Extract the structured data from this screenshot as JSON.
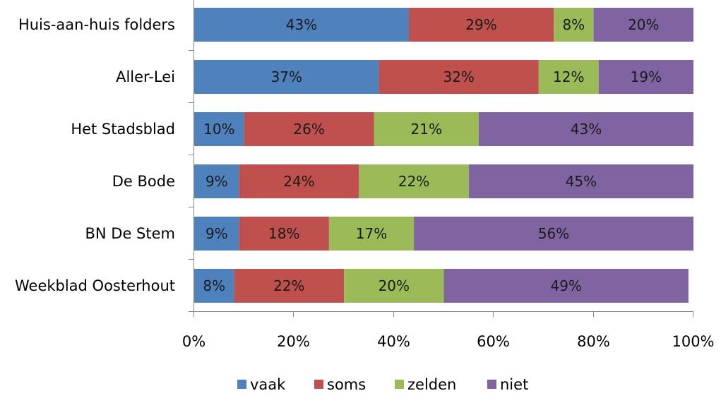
{
  "chart_data": {
    "type": "bar",
    "orientation": "horizontal",
    "stacked": "percent",
    "categories": [
      "Huis-aan-huis folders",
      "Aller-Lei",
      "Het Stadsblad",
      "De Bode",
      "BN De Stem",
      "Weekblad Oosterhout"
    ],
    "series": [
      {
        "name": "vaak",
        "color": "#4f81bd",
        "values": [
          43,
          37,
          10,
          9,
          9,
          8
        ],
        "labels": [
          "43%",
          "37%",
          "10%",
          "9%",
          "9%",
          "8%"
        ]
      },
      {
        "name": "soms",
        "color": "#c0504d",
        "values": [
          29,
          32,
          26,
          24,
          18,
          22
        ],
        "labels": [
          "29%",
          "32%",
          "26%",
          "24%",
          "18%",
          "22%"
        ]
      },
      {
        "name": "zelden",
        "color": "#9bbb59",
        "values": [
          8,
          12,
          21,
          22,
          17,
          20
        ],
        "labels": [
          "8%",
          "12%",
          "21%",
          "22%",
          "17%",
          "20%"
        ]
      },
      {
        "name": "niet",
        "color": "#8064a2",
        "values": [
          20,
          19,
          43,
          45,
          56,
          49
        ],
        "labels": [
          "20%",
          "19%",
          "43%",
          "45%",
          "56%",
          "49%"
        ]
      }
    ],
    "x_ticks": [
      "0%",
      "20%",
      "40%",
      "60%",
      "80%",
      "100%"
    ],
    "xlim": [
      0,
      100
    ],
    "grid": false,
    "legend_position": "bottom",
    "title": "",
    "xlabel": "",
    "ylabel": ""
  }
}
